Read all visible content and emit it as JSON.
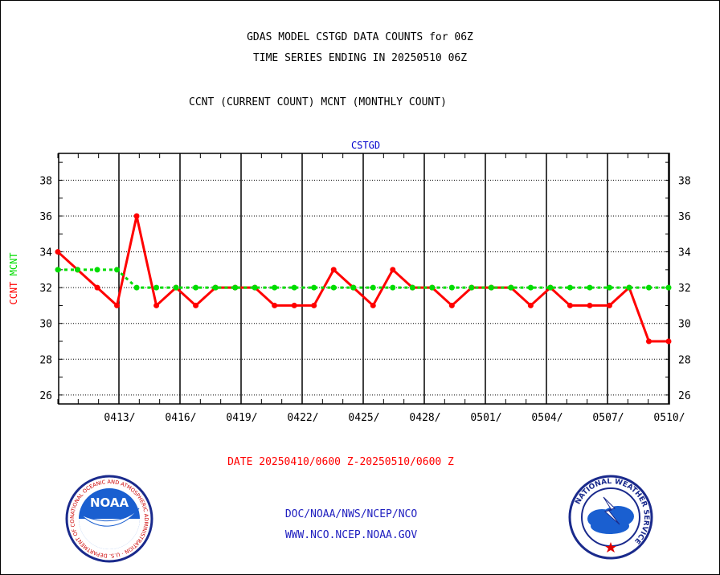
{
  "header": {
    "title_line1": "GDAS MODEL CSTGD DATA COUNTS for 06Z",
    "title_line2": "TIME SERIES ENDING IN 20250510 06Z",
    "legend_line": "CCNT (CURRENT COUNT) MCNT (MONTHLY COUNT)"
  },
  "chart_data": {
    "type": "line",
    "title": "CSTGD",
    "ylabel_parts": [
      {
        "text": "CCNT",
        "color": "#ff0000"
      },
      {
        "text": "MCNT",
        "color": "#00dd00"
      }
    ],
    "xlabel": "DATE 20250410/0600 Z-20250510/0600 Z",
    "ylim": [
      25.5,
      39.5
    ],
    "yticks": [
      26,
      28,
      30,
      32,
      34,
      36,
      38
    ],
    "xlim": [
      0,
      30
    ],
    "xticks": [
      {
        "x": 3,
        "label": "0413/"
      },
      {
        "x": 6,
        "label": "0416/"
      },
      {
        "x": 9,
        "label": "0419/"
      },
      {
        "x": 12,
        "label": "0422/"
      },
      {
        "x": 15,
        "label": "0425/"
      },
      {
        "x": 18,
        "label": "0428/"
      },
      {
        "x": 21,
        "label": "0501/"
      },
      {
        "x": 24,
        "label": "0504/"
      },
      {
        "x": 27,
        "label": "0507/"
      },
      {
        "x": 30,
        "label": "0510/"
      }
    ],
    "grid": true,
    "series": [
      {
        "name": "CCNT",
        "color": "#ff0000",
        "style": "solid",
        "values": [
          34,
          33,
          32,
          31,
          36,
          31,
          32,
          31,
          32,
          32,
          32,
          31,
          31,
          31,
          33,
          32,
          31,
          33,
          32,
          32,
          31,
          32,
          32,
          32,
          31,
          32,
          31,
          31,
          31,
          32,
          29,
          29
        ]
      },
      {
        "name": "MCNT",
        "color": "#00dd00",
        "style": "dotted",
        "values": [
          33,
          33,
          33,
          33,
          32,
          32,
          32,
          32,
          32,
          32,
          32,
          32,
          32,
          32,
          32,
          32,
          32,
          32,
          32,
          32,
          32,
          32,
          32,
          32,
          32,
          32,
          32,
          32,
          32,
          32,
          32,
          32
        ]
      }
    ]
  },
  "footer": {
    "line1": "DOC/NOAA/NWS/NCEP/NCO",
    "line2": "WWW.NCO.NCEP.NOAA.GOV"
  },
  "logos": {
    "noaa_label": "NOAA",
    "noaa_ring_text": "NATIONAL OCEANIC AND ATMOSPHERIC ADMINISTRATION · U.S. DEPARTMENT OF COMMERCE ·",
    "nws_ring_text": "NATIONAL WEATHER SERVICE"
  }
}
